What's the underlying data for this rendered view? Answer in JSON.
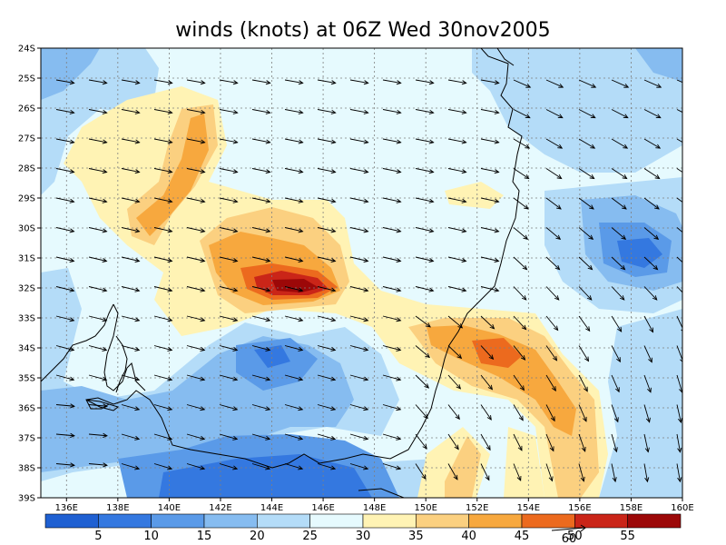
{
  "title": "winds (knots) at 06Z Wed 30nov2005",
  "y_axis_ticks": [
    "24S",
    "25S",
    "26S",
    "27S",
    "28S",
    "29S",
    "30S",
    "31S",
    "32S",
    "33S",
    "34S",
    "35S",
    "36S",
    "37S",
    "38S",
    "39S"
  ],
  "x_axis_ticks": [
    "136E",
    "138E",
    "140E",
    "142E",
    "144E",
    "146E",
    "148E",
    "150E",
    "152E",
    "154E",
    "156E",
    "158E",
    "160E"
  ],
  "colorbar": {
    "labels": [
      "5",
      "10",
      "15",
      "20",
      "25",
      "30",
      "35",
      "40",
      "45",
      "50",
      "55"
    ],
    "colors": [
      "#1f60d2",
      "#3478e0",
      "#5a9ae8",
      "#86bcf0",
      "#b4dcf8",
      "#e6fafe",
      "#fff3b4",
      "#fbd080",
      "#f7a83e",
      "#ec6a1e",
      "#ca2518",
      "#9c0808"
    ],
    "reference_vector_label": "60"
  },
  "map_colors": {
    "ocean_default": "#e6fafe",
    "coastline": "#000000",
    "grid": "#7f7f7f"
  },
  "icons": [
    "wind-arrow-icon"
  ]
}
